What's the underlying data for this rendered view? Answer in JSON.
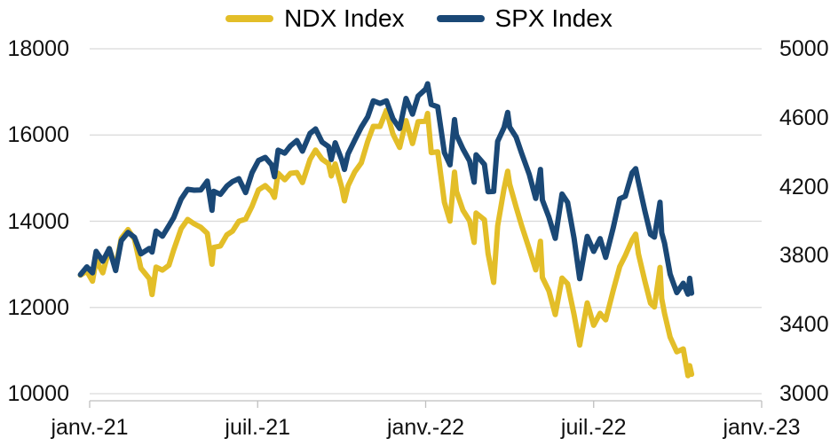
{
  "legend": {
    "items": [
      {
        "label": "NDX Index",
        "color": "#E3BE28"
      },
      {
        "label": "SPX Index",
        "color": "#1A4876"
      }
    ],
    "position": "top"
  },
  "chart_data": {
    "type": "line",
    "title": "",
    "legend_position": "top",
    "grid": {
      "gridline_color": "#D9D9D9",
      "axis_line_color": "#BFBFBF",
      "background": "#ffffff"
    },
    "x_axis": {
      "unit": "months_since_jan_2021",
      "range": [
        0,
        24
      ],
      "ticks": [
        {
          "label": "janv.-21",
          "month": 0
        },
        {
          "label": "juil.-21",
          "month": 6
        },
        {
          "label": "janv.-22",
          "month": 12
        },
        {
          "label": "juil.-22",
          "month": 18
        },
        {
          "label": "janv.-23",
          "month": 24
        }
      ]
    },
    "left_axis": {
      "series": "NDX Index",
      "min": 10000,
      "max": 18000,
      "tick_labels": [
        "18000",
        "16000",
        "14000",
        "12000",
        "10000"
      ],
      "tick_values": [
        18000,
        16000,
        14000,
        12000,
        10000
      ]
    },
    "right_axis": {
      "series": "SPX Index",
      "min": 3000,
      "max": 5000,
      "tick_labels": [
        "5000",
        "4600",
        "4200",
        "3800",
        "3400",
        "3000"
      ],
      "tick_values": [
        5000,
        4600,
        4200,
        3800,
        3400,
        3000
      ]
    },
    "series": [
      {
        "name": "NDX Index",
        "axis": "left",
        "color": "#E3BE28",
        "column": 1
      },
      {
        "name": "SPX Index",
        "axis": "right",
        "color": "#1A4876",
        "column": 2
      }
    ],
    "point_format": [
      "months_since_jan_2021",
      "NDX",
      "SPX"
    ],
    "points": [
      [
        -0.33,
        12750,
        3690
      ],
      [
        -0.1,
        12840,
        3735
      ],
      [
        0.1,
        12609,
        3701
      ],
      [
        0.23,
        13106,
        3825
      ],
      [
        0.47,
        12804,
        3768
      ],
      [
        0.7,
        13366,
        3841
      ],
      [
        0.93,
        12925,
        3714
      ],
      [
        1.13,
        13603,
        3887
      ],
      [
        1.37,
        13807,
        3935
      ],
      [
        1.6,
        13580,
        3907
      ],
      [
        1.83,
        12909,
        3811
      ],
      [
        2.13,
        12668,
        3842
      ],
      [
        2.23,
        12299,
        3821
      ],
      [
        2.37,
        12937,
        3943
      ],
      [
        2.6,
        12867,
        3913
      ],
      [
        2.83,
        12979,
        3975
      ],
      [
        3.0,
        13330,
        4020
      ],
      [
        3.27,
        13829,
        4129
      ],
      [
        3.5,
        14041,
        4185
      ],
      [
        3.73,
        13941,
        4180
      ],
      [
        3.97,
        13860,
        4181
      ],
      [
        4.2,
        13719,
        4233
      ],
      [
        4.37,
        13002,
        4063
      ],
      [
        4.43,
        13393,
        4174
      ],
      [
        4.67,
        13427,
        4156
      ],
      [
        4.9,
        13686,
        4204
      ],
      [
        5.1,
        13770,
        4230
      ],
      [
        5.33,
        13999,
        4247
      ],
      [
        5.57,
        14049,
        4166
      ],
      [
        5.8,
        14345,
        4281
      ],
      [
        6.03,
        14727,
        4352
      ],
      [
        6.27,
        14826,
        4370
      ],
      [
        6.5,
        14681,
        4327
      ],
      [
        6.6,
        14553,
        4258
      ],
      [
        6.73,
        15112,
        4412
      ],
      [
        6.97,
        14960,
        4395
      ],
      [
        7.17,
        15110,
        4437
      ],
      [
        7.4,
        15130,
        4468
      ],
      [
        7.6,
        14896,
        4406
      ],
      [
        7.87,
        15432,
        4509
      ],
      [
        8.07,
        15652,
        4535
      ],
      [
        8.3,
        15440,
        4459
      ],
      [
        8.53,
        15333,
        4433
      ],
      [
        8.63,
        15048,
        4358
      ],
      [
        8.77,
        15329,
        4455
      ],
      [
        9.0,
        14792,
        4357
      ],
      [
        9.1,
        14472,
        4300
      ],
      [
        9.23,
        14822,
        4391
      ],
      [
        9.47,
        15147,
        4471
      ],
      [
        9.7,
        15355,
        4545
      ],
      [
        9.93,
        15850,
        4605
      ],
      [
        10.13,
        16200,
        4698
      ],
      [
        10.37,
        16199,
        4683
      ],
      [
        10.6,
        16573,
        4698
      ],
      [
        10.83,
        16025,
        4595
      ],
      [
        11.07,
        15712,
        4538
      ],
      [
        11.3,
        16332,
        4712
      ],
      [
        11.53,
        15801,
        4621
      ],
      [
        11.73,
        16309,
        4726
      ],
      [
        12.0,
        16320,
        4766
      ],
      [
        12.07,
        16501,
        4797
      ],
      [
        12.2,
        15592,
        4677
      ],
      [
        12.43,
        15611,
        4663
      ],
      [
        12.67,
        14438,
        4398
      ],
      [
        12.87,
        14003,
        4327
      ],
      [
        13.03,
        15139,
        4589
      ],
      [
        13.1,
        14694,
        4501
      ],
      [
        13.33,
        14254,
        4419
      ],
      [
        13.57,
        14010,
        4349
      ],
      [
        13.73,
        13509,
        4226
      ],
      [
        13.8,
        14189,
        4385
      ],
      [
        14.1,
        14035,
        4329
      ],
      [
        14.23,
        13251,
        4171
      ],
      [
        14.43,
        12581,
        4173
      ],
      [
        14.57,
        13893,
        4463
      ],
      [
        14.8,
        14754,
        4543
      ],
      [
        14.93,
        15159,
        4631
      ],
      [
        15.0,
        14861,
        4546
      ],
      [
        15.23,
        14328,
        4488
      ],
      [
        15.43,
        13893,
        4393
      ],
      [
        15.7,
        13357,
        4272
      ],
      [
        15.93,
        12871,
        4132
      ],
      [
        16.1,
        13536,
        4300
      ],
      [
        16.17,
        12694,
        4123
      ],
      [
        16.4,
        12388,
        4024
      ],
      [
        16.63,
        11835,
        3901
      ],
      [
        16.87,
        12681,
        4158
      ],
      [
        17.07,
        12548,
        4109
      ],
      [
        17.3,
        11832,
        3901
      ],
      [
        17.5,
        11128,
        3667
      ],
      [
        17.77,
        12105,
        3912
      ],
      [
        18.0,
        11586,
        3825
      ],
      [
        18.23,
        11864,
        3899
      ],
      [
        18.43,
        11713,
        3790
      ],
      [
        18.7,
        12396,
        3962
      ],
      [
        18.93,
        12948,
        4130
      ],
      [
        19.13,
        13205,
        4145
      ],
      [
        19.37,
        13565,
        4280
      ],
      [
        19.5,
        13700,
        4305
      ],
      [
        19.6,
        13243,
        4228
      ],
      [
        19.83,
        12606,
        4058
      ],
      [
        20.03,
        12098,
        3924
      ],
      [
        20.17,
        12012,
        3908
      ],
      [
        20.37,
        12929,
        4110
      ],
      [
        20.43,
        12206,
        3933
      ],
      [
        20.53,
        11861,
        3873
      ],
      [
        20.73,
        11311,
        3693
      ],
      [
        20.97,
        10971,
        3586
      ],
      [
        21.2,
        11039,
        3640
      ],
      [
        21.37,
        10417,
        3577
      ],
      [
        21.43,
        10649,
        3669
      ],
      [
        21.5,
        10450,
        3583
      ]
    ]
  }
}
